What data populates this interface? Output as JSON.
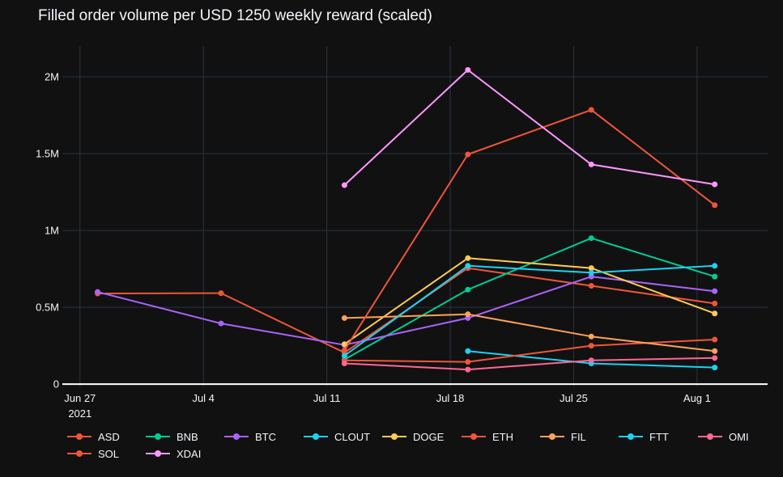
{
  "chart_data": {
    "type": "line",
    "title": "Filled order volume per USD 1250 weekly reward (scaled)",
    "xlabel": "",
    "ylabel": "",
    "x_ticks": [
      "Jun 27",
      "Jul 4",
      "Jul 11",
      "Jul 18",
      "Jul 25",
      "Aug 1"
    ],
    "x_tick_year": "2021",
    "y_ticks": [
      {
        "value": 0,
        "label": "0"
      },
      {
        "value": 500000,
        "label": "0.5M"
      },
      {
        "value": 1000000,
        "label": "1M"
      },
      {
        "value": 1500000,
        "label": "1.5M"
      },
      {
        "value": 2000000,
        "label": "2M"
      }
    ],
    "xlim": [
      "2021-06-26",
      "2021-08-05"
    ],
    "ylim": [
      -15000,
      2200000
    ],
    "grid": true,
    "legend_position": "bottom",
    "series": [
      {
        "name": "ASD",
        "color": "#ef553b",
        "x": [
          "2021-06-28",
          "2021-07-05",
          "2021-07-12",
          "2021-07-19",
          "2021-07-26",
          "2021-08-02"
        ],
        "y": [
          590000,
          592000,
          205000,
          755000,
          640000,
          525000
        ]
      },
      {
        "name": "BNB",
        "color": "#00cc96",
        "x": [
          "2021-07-12",
          "2021-07-19",
          "2021-07-26",
          "2021-08-02"
        ],
        "y": [
          160000,
          615000,
          950000,
          700000
        ]
      },
      {
        "name": "BTC",
        "color": "#ab63fa",
        "x": [
          "2021-06-28",
          "2021-07-05",
          "2021-07-12",
          "2021-07-19",
          "2021-07-26",
          "2021-08-02"
        ],
        "y": [
          600000,
          395000,
          255000,
          430000,
          700000,
          605000
        ]
      },
      {
        "name": "CLOUT",
        "color": "#19d3f3",
        "x": [
          "2021-07-19",
          "2021-07-26",
          "2021-08-02"
        ],
        "y": [
          215000,
          135000,
          108000
        ]
      },
      {
        "name": "DOGE",
        "color": "#fecb52",
        "x": [
          "2021-07-12",
          "2021-07-19",
          "2021-07-26",
          "2021-08-02"
        ],
        "y": [
          260000,
          820000,
          755000,
          460000
        ]
      },
      {
        "name": "ETH",
        "color": "#ef553b",
        "x": [
          "2021-07-12",
          "2021-07-19",
          "2021-07-26",
          "2021-08-02"
        ],
        "y": [
          155000,
          145000,
          250000,
          290000
        ]
      },
      {
        "name": "FIL",
        "color": "#ffa15a",
        "x": [
          "2021-07-12",
          "2021-07-19",
          "2021-07-26",
          "2021-08-02"
        ],
        "y": [
          430000,
          455000,
          310000,
          215000
        ]
      },
      {
        "name": "FTT",
        "color": "#19d3f3",
        "x": [
          "2021-07-12",
          "2021-07-19",
          "2021-07-26",
          "2021-08-02"
        ],
        "y": [
          185000,
          770000,
          725000,
          770000
        ]
      },
      {
        "name": "OMI",
        "color": "#ff6692",
        "x": [
          "2021-07-12",
          "2021-07-19",
          "2021-07-26",
          "2021-08-02"
        ],
        "y": [
          135000,
          95000,
          155000,
          170000
        ]
      },
      {
        "name": "SOL",
        "color": "#ef553b",
        "x": [
          "2021-07-12",
          "2021-07-19",
          "2021-07-26",
          "2021-08-02"
        ],
        "y": [
          220000,
          1495000,
          1785000,
          1165000
        ]
      },
      {
        "name": "XDAI",
        "color": "#ff97ff",
        "x": [
          "2021-07-12",
          "2021-07-19",
          "2021-07-26",
          "2021-08-02"
        ],
        "y": [
          1295000,
          2045000,
          1430000,
          1300000
        ]
      }
    ]
  }
}
